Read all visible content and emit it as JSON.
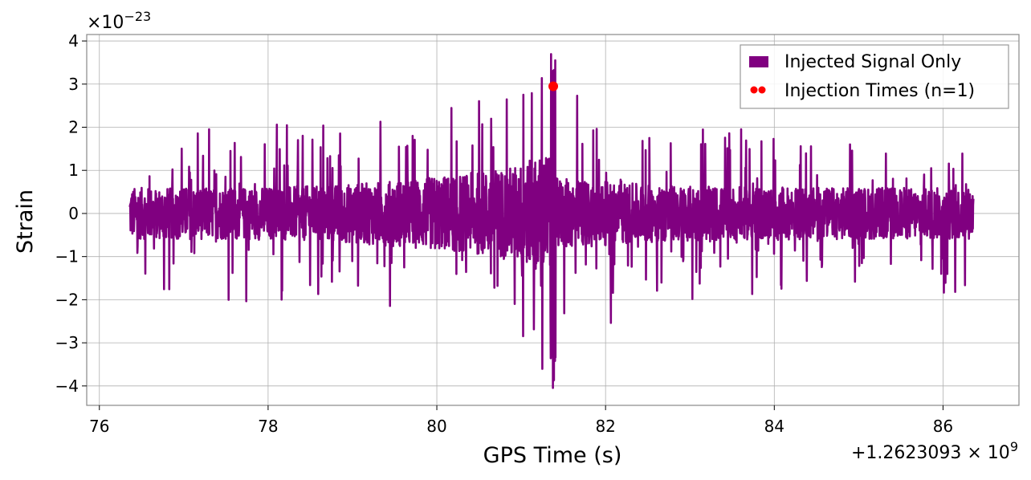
{
  "chart_data": {
    "type": "line",
    "title": "",
    "xlabel": "GPS Time (s)",
    "ylabel": "Strain",
    "x_offset_label": "+1.2623093 × 10",
    "x_offset_exponent": "9",
    "y_scale_label": "×10",
    "y_scale_exponent": "−23",
    "xlim": [
      75.85,
      86.9
    ],
    "ylim": [
      -4.45,
      4.15
    ],
    "x_ticks": [
      76,
      78,
      80,
      82,
      84,
      86
    ],
    "x_tick_labels": [
      "76",
      "78",
      "80",
      "82",
      "84",
      "86"
    ],
    "y_ticks": [
      -4,
      -3,
      -2,
      -1,
      0,
      1,
      2,
      3,
      4
    ],
    "y_tick_labels": [
      "−4",
      "−3",
      "−2",
      "−1",
      "0",
      "1",
      "2",
      "3",
      "4"
    ],
    "grid": true,
    "legend_position": "top-right",
    "series": [
      {
        "name": "Injected Signal Only",
        "kind": "line",
        "color": "#800080",
        "t_start": 76.36,
        "t_end": 86.36,
        "typical_amplitude": 0.6,
        "peak_envelope_amplitude": 1.3,
        "peak_time": 81.38,
        "max_value": 3.7,
        "min_value": -4.05
      },
      {
        "name": "Injection Times (n=1)",
        "kind": "scatter",
        "color": "#ff0000",
        "points": [
          {
            "x": 81.38,
            "y": 2.95
          }
        ]
      }
    ]
  }
}
